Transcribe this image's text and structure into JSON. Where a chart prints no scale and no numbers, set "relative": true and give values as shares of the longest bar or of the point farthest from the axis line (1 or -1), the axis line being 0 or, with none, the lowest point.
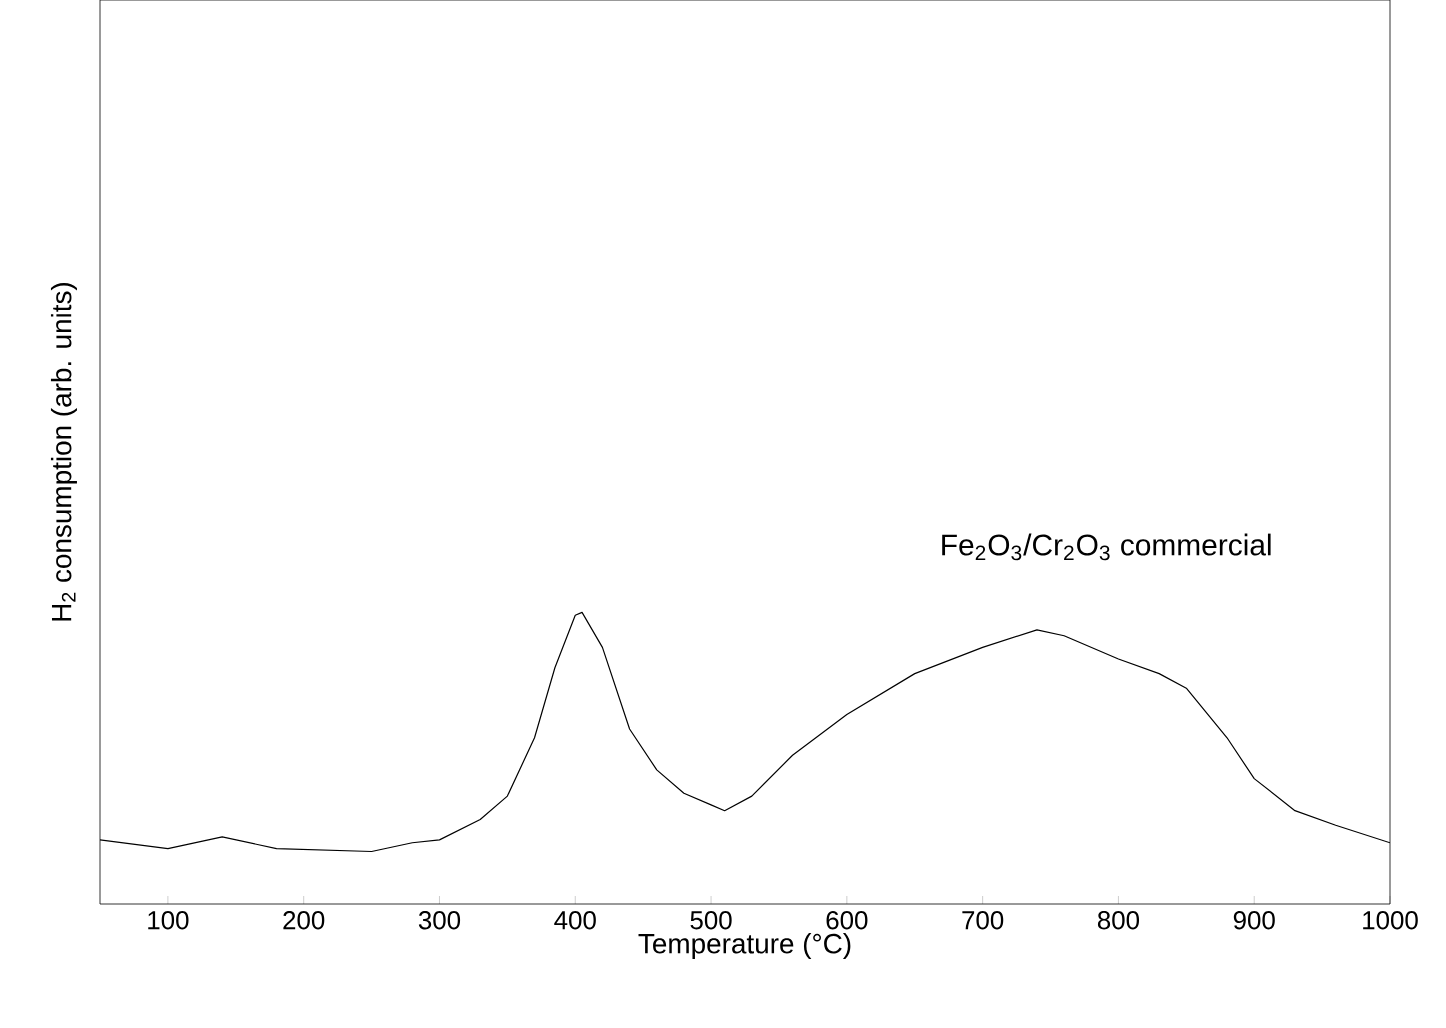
{
  "chart_data": {
    "type": "line",
    "relative": true,
    "xlabel": "Temperature (°C)",
    "ylabel": "H$_{2}$ consumption  (arb. units)",
    "xlim": [
      50,
      1000
    ],
    "xticks": [
      100,
      200,
      300,
      400,
      500,
      600,
      700,
      800,
      900,
      1000
    ],
    "tick_labels": "x",
    "legend": false,
    "grid": false,
    "series": [
      {
        "name": "Fe$_{2}$O$_{3}$/Cr$_{2}$O$_{3}$  commercial",
        "color": "#000000",
        "x": [
          50,
          100,
          140,
          180,
          250,
          280,
          300,
          330,
          350,
          370,
          385,
          400,
          405,
          420,
          440,
          460,
          480,
          500,
          510,
          530,
          560,
          600,
          650,
          700,
          740,
          760,
          800,
          830,
          850,
          880,
          900,
          930,
          960,
          1000
        ],
        "values": [
          0.22,
          0.19,
          0.23,
          0.19,
          0.18,
          0.21,
          0.22,
          0.29,
          0.37,
          0.57,
          0.81,
          0.99,
          1.0,
          0.88,
          0.6,
          0.46,
          0.38,
          0.34,
          0.32,
          0.37,
          0.51,
          0.65,
          0.79,
          0.88,
          0.94,
          0.92,
          0.84,
          0.79,
          0.74,
          0.57,
          0.43,
          0.32,
          0.27,
          0.21
        ]
      }
    ]
  }
}
